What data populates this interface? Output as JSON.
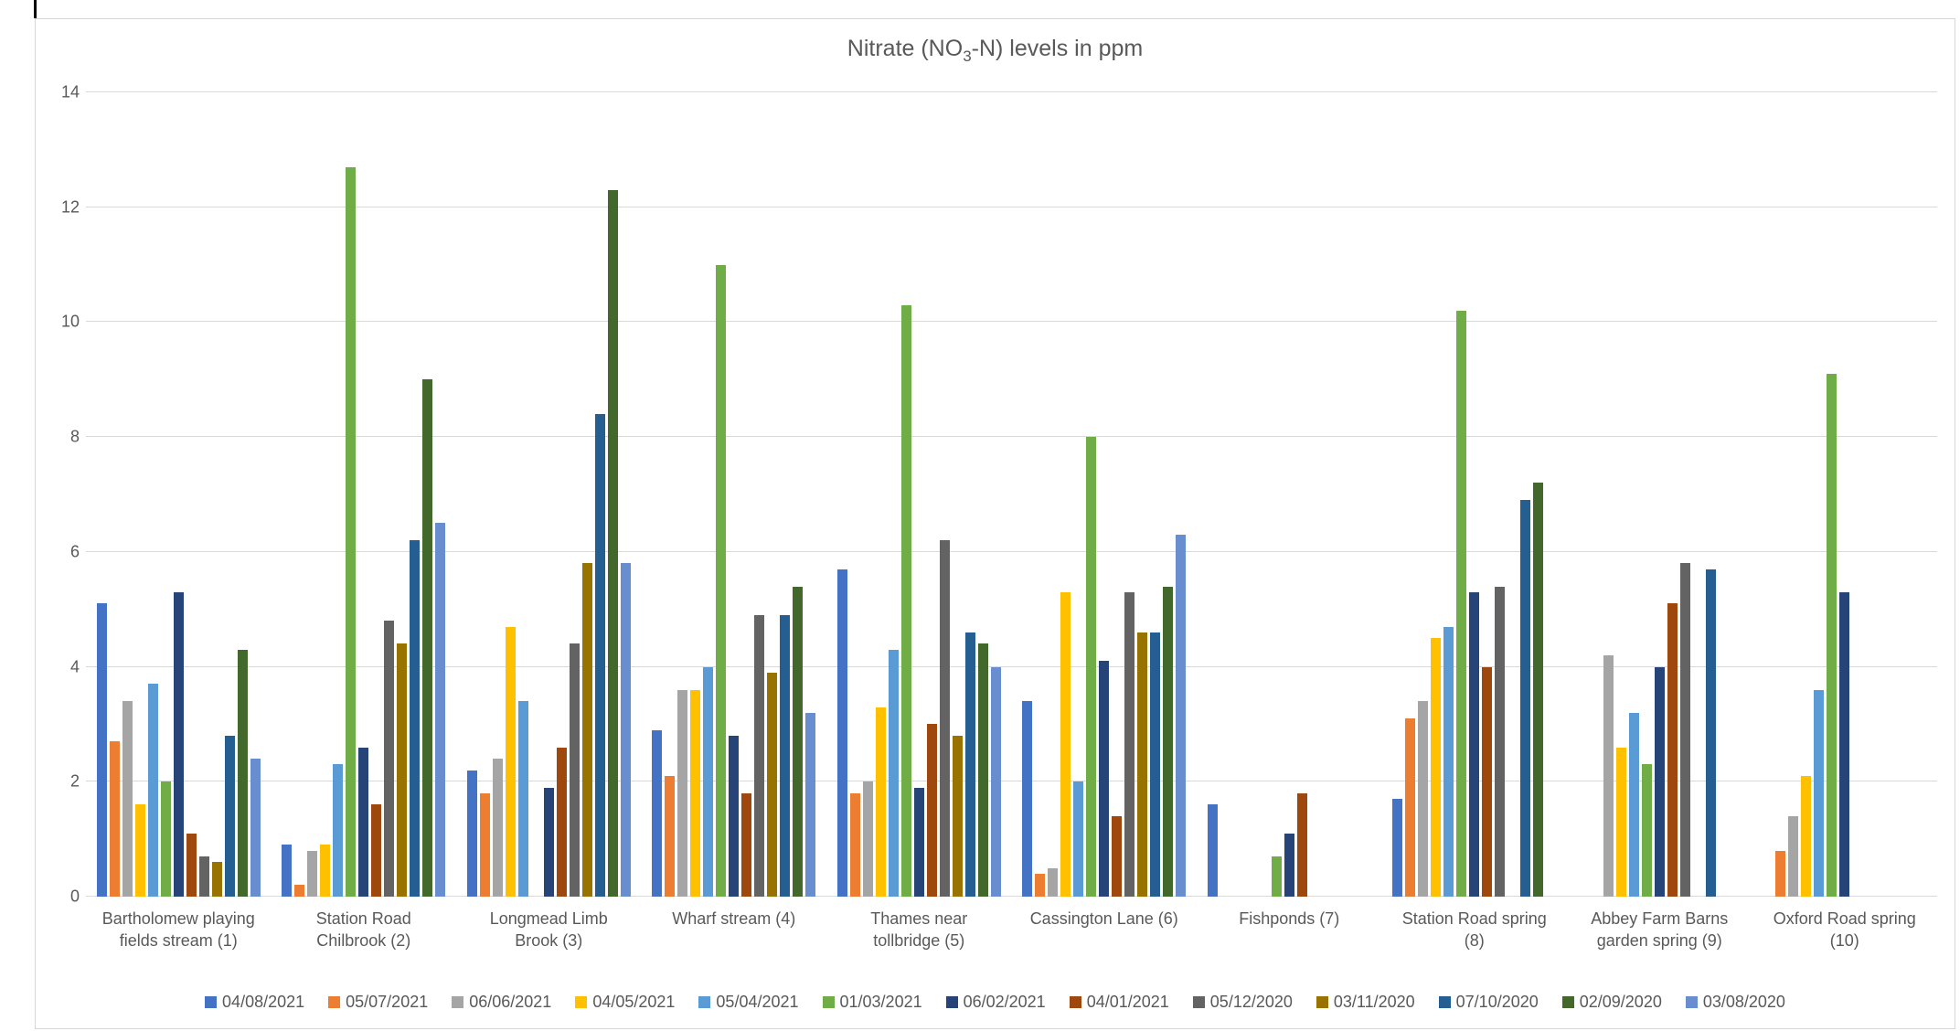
{
  "title": {
    "prefix": "Nitrate (NO",
    "sub": "3",
    "suffix": "-N) levels in ppm"
  },
  "colors": {
    "text": "#595959",
    "gridline": "#d9d9d9",
    "background": "#ffffff",
    "border": "#d7d7d7"
  },
  "chart_data": {
    "type": "bar",
    "title": "Nitrate (NO3-N) levels in ppm",
    "xlabel": "",
    "ylabel": "",
    "ylim": [
      0,
      14
    ],
    "yticks": [
      0,
      2,
      4,
      6,
      8,
      10,
      12,
      14
    ],
    "grid": true,
    "legend_position": "bottom",
    "categories": [
      "Bartholomew playing fields stream (1)",
      "Station Road Chilbrook (2)",
      "Longmead Limb Brook (3)",
      "Wharf stream (4)",
      "Thames near tollbridge (5)",
      "Cassington Lane (6)",
      "Fishponds (7)",
      "Station Road spring (8)",
      "Abbey Farm Barns garden spring (9)",
      "Oxford Road spring (10)"
    ],
    "series": [
      {
        "name": "04/08/2021",
        "color": "#4472C4",
        "values": [
          5.1,
          0.9,
          2.2,
          2.9,
          5.7,
          3.4,
          1.6,
          1.7,
          0,
          0
        ]
      },
      {
        "name": "05/07/2021",
        "color": "#ED7D31",
        "values": [
          2.7,
          0.2,
          1.8,
          2.1,
          1.8,
          0.4,
          0,
          3.1,
          0,
          0.8
        ]
      },
      {
        "name": "06/06/2021",
        "color": "#A5A5A5",
        "values": [
          3.4,
          0.8,
          2.4,
          3.6,
          2.0,
          0.5,
          0,
          3.4,
          4.2,
          1.4
        ]
      },
      {
        "name": "04/05/2021",
        "color": "#FFC000",
        "values": [
          1.6,
          0.9,
          4.7,
          3.6,
          3.3,
          5.3,
          0,
          4.5,
          2.6,
          2.1
        ]
      },
      {
        "name": "05/04/2021",
        "color": "#5B9BD5",
        "values": [
          3.7,
          2.3,
          3.4,
          4.0,
          4.3,
          2.0,
          0,
          4.7,
          3.2,
          3.6
        ]
      },
      {
        "name": "01/03/2021",
        "color": "#70AD47",
        "values": [
          2.0,
          12.7,
          0,
          11.0,
          10.3,
          8.0,
          0.7,
          10.2,
          2.3,
          9.1
        ]
      },
      {
        "name": "06/02/2021",
        "color": "#264478",
        "values": [
          5.3,
          2.6,
          1.9,
          2.8,
          1.9,
          4.1,
          1.1,
          5.3,
          4.0,
          5.3
        ]
      },
      {
        "name": "04/01/2021",
        "color": "#9E480E",
        "values": [
          1.1,
          1.6,
          2.6,
          1.8,
          3.0,
          1.4,
          1.8,
          4.0,
          5.1,
          0
        ]
      },
      {
        "name": "05/12/2020",
        "color": "#636363",
        "values": [
          0.7,
          4.8,
          4.4,
          4.9,
          6.2,
          5.3,
          0,
          5.4,
          5.8,
          0
        ]
      },
      {
        "name": "03/11/2020",
        "color": "#997300",
        "values": [
          0.6,
          4.4,
          5.8,
          3.9,
          2.8,
          4.6,
          0,
          0,
          0,
          0
        ]
      },
      {
        "name": "07/10/2020",
        "color": "#255E91",
        "values": [
          2.8,
          6.2,
          8.4,
          4.9,
          4.6,
          4.6,
          0,
          6.9,
          5.7,
          0
        ]
      },
      {
        "name": "02/09/2020",
        "color": "#43682B",
        "values": [
          4.3,
          9.0,
          12.3,
          5.4,
          4.4,
          5.4,
          0,
          7.2,
          0,
          0
        ]
      },
      {
        "name": "03/08/2020",
        "color": "#698ED0",
        "values": [
          2.4,
          6.5,
          5.8,
          3.2,
          4.0,
          6.3,
          0,
          0,
          0,
          0
        ]
      }
    ]
  }
}
